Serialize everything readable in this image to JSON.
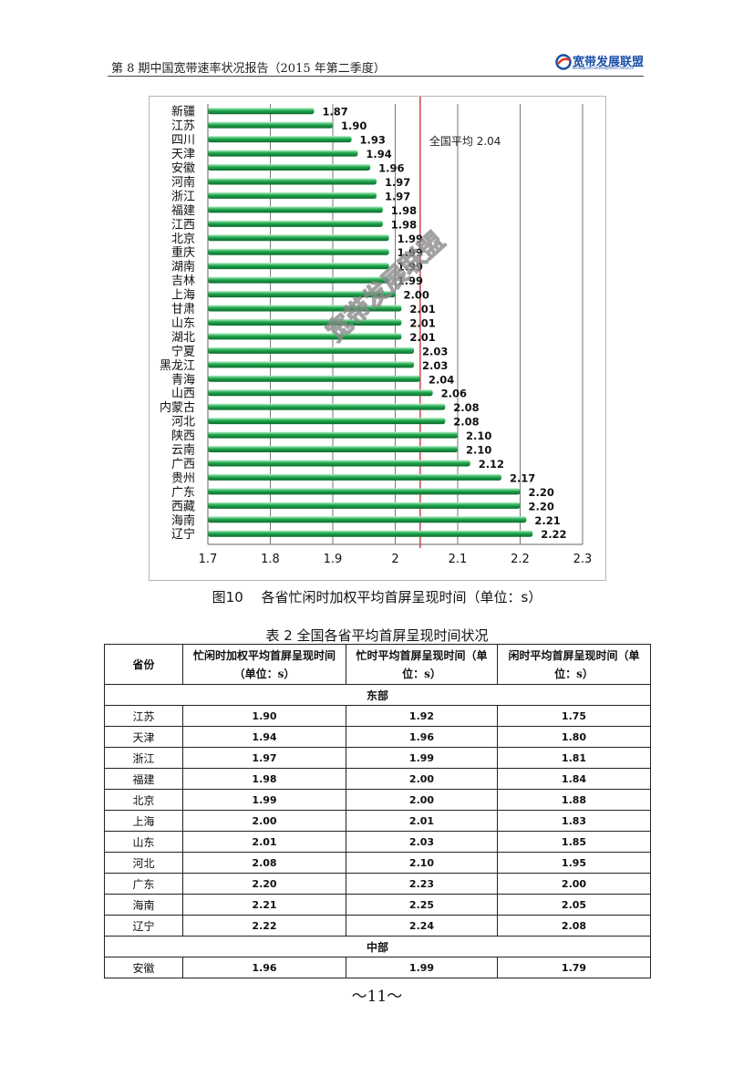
{
  "header": {
    "title": "第 8 期中国宽带速率状况报告（2015 年第二季度）",
    "logo_text": "宽带发展联盟",
    "logo_subtext": "Broadband Development Alliance"
  },
  "figure": {
    "caption": "图10　 各省忙闲时加权平均首屏呈现时间（单位：s）"
  },
  "chart_data": {
    "type": "bar",
    "orientation": "horizontal",
    "categories": [
      "新疆",
      "江苏",
      "四川",
      "天津",
      "安徽",
      "河南",
      "浙江",
      "福建",
      "江西",
      "北京",
      "重庆",
      "湖南",
      "吉林",
      "上海",
      "甘肃",
      "山东",
      "湖北",
      "宁夏",
      "黑龙江",
      "青海",
      "山西",
      "内蒙古",
      "河北",
      "陕西",
      "云南",
      "广西",
      "贵州",
      "广东",
      "西藏",
      "海南",
      "辽宁"
    ],
    "values": [
      1.87,
      1.9,
      1.93,
      1.94,
      1.96,
      1.97,
      1.97,
      1.98,
      1.98,
      1.99,
      1.99,
      1.99,
      1.99,
      2.0,
      2.01,
      2.01,
      2.01,
      2.03,
      2.03,
      2.04,
      2.06,
      2.08,
      2.08,
      2.1,
      2.1,
      2.12,
      2.17,
      2.2,
      2.2,
      2.21,
      2.22
    ],
    "value_labels": [
      "1.87",
      "1.90",
      "1.93",
      "1.94",
      "1.96",
      "1.97",
      "1.97",
      "1.98",
      "1.98",
      "1.99",
      "1.99",
      "1.99",
      "1.99",
      "2.00",
      "2.01",
      "2.01",
      "2.01",
      "2.03",
      "2.03",
      "2.04",
      "2.06",
      "2.08",
      "2.08",
      "2.10",
      "2.10",
      "2.12",
      "2.17",
      "2.20",
      "2.20",
      "2.21",
      "2.22"
    ],
    "xlim": [
      1.7,
      2.3
    ],
    "xticks": [
      "1.7",
      "1.8",
      "1.9",
      "2",
      "2.1",
      "2.2",
      "2.3"
    ],
    "grid": true,
    "reference_line": {
      "value": 2.04,
      "label": "全国平均",
      "value_label": "2.04",
      "color": "#c0171c"
    },
    "bar_color": "#1fa84e",
    "watermark": "宽带发展联盟"
  },
  "table": {
    "title": "表 2 全国各省平均首屏呈现时间状况",
    "headers": [
      "省份",
      "忙闲时加权平均首屏呈现时间（单位：s）",
      "忙时平均首屏呈现时间（单位：s）",
      "闲时平均首屏呈现时间（单位：s）"
    ],
    "sections": [
      {
        "name": "东部",
        "rows": [
          [
            "江苏",
            "1.90",
            "1.92",
            "1.75"
          ],
          [
            "天津",
            "1.94",
            "1.96",
            "1.80"
          ],
          [
            "浙江",
            "1.97",
            "1.99",
            "1.81"
          ],
          [
            "福建",
            "1.98",
            "2.00",
            "1.84"
          ],
          [
            "北京",
            "1.99",
            "2.00",
            "1.88"
          ],
          [
            "上海",
            "2.00",
            "2.01",
            "1.83"
          ],
          [
            "山东",
            "2.01",
            "2.03",
            "1.85"
          ],
          [
            "河北",
            "2.08",
            "2.10",
            "1.95"
          ],
          [
            "广东",
            "2.20",
            "2.23",
            "2.00"
          ],
          [
            "海南",
            "2.21",
            "2.25",
            "2.05"
          ],
          [
            "辽宁",
            "2.22",
            "2.24",
            "2.08"
          ]
        ]
      },
      {
        "name": "中部",
        "rows": [
          [
            "安徽",
            "1.96",
            "1.99",
            "1.79"
          ]
        ]
      }
    ]
  },
  "page_number": "～11～"
}
